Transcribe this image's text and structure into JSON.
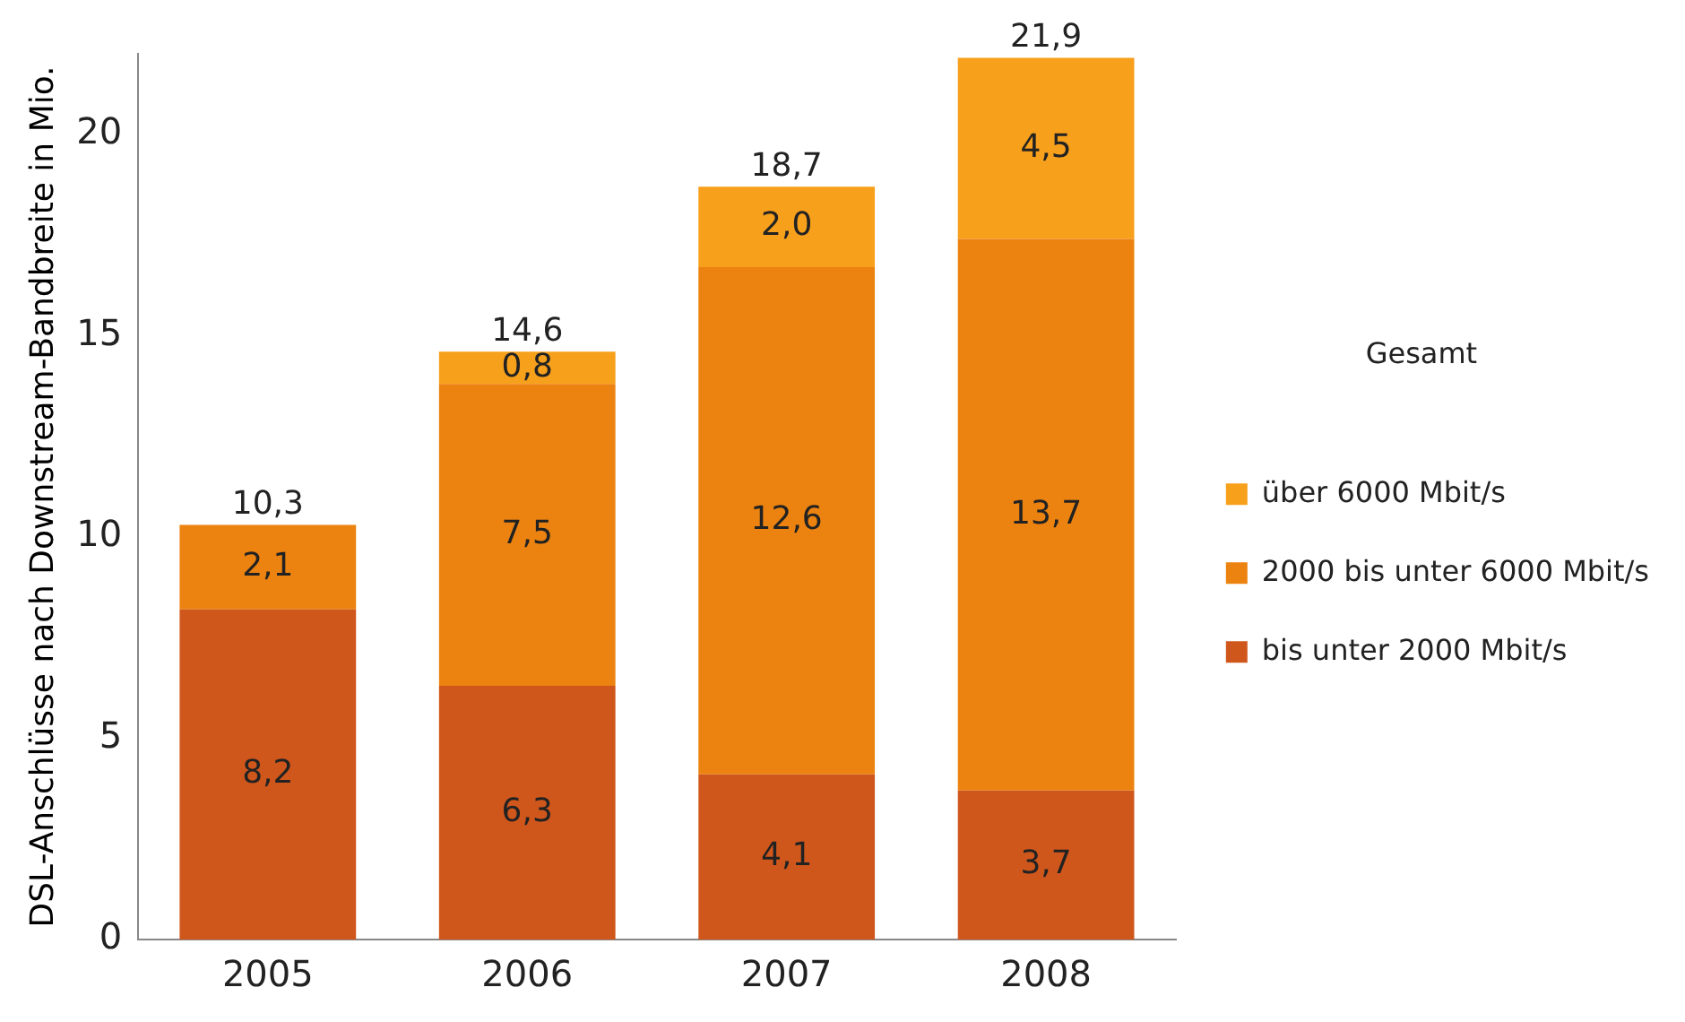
{
  "chart_data": {
    "type": "bar",
    "stacked": true,
    "ylabel": "DSL-Anschlüsse nach Downstream-Bandbreite in Mio.",
    "legend_title": "Gesamt",
    "categories": [
      "2005",
      "2006",
      "2007",
      "2008"
    ],
    "series": [
      {
        "name": "bis unter 2000 Mbit/s",
        "color": "#d0571c",
        "values": [
          8.2,
          6.3,
          4.1,
          3.7
        ],
        "value_labels": [
          "8,2",
          "6,3",
          "4,1",
          "3,7"
        ]
      },
      {
        "name": "2000 bis unter 6000 Mbit/s",
        "color": "#ec8310",
        "values": [
          2.1,
          7.5,
          12.6,
          13.7
        ],
        "value_labels": [
          "2,1",
          "7,5",
          "12,6",
          "13,7"
        ]
      },
      {
        "name": "über 6000 Mbit/s",
        "color": "#f7a01c",
        "values": [
          null,
          0.8,
          2.0,
          4.5
        ],
        "value_labels": [
          null,
          "0,8",
          "2,0",
          "4,5"
        ]
      }
    ],
    "ylim": [
      0,
      22
    ],
    "yticks": [
      0,
      5,
      10,
      15,
      20
    ],
    "grid": false,
    "legend": "right",
    "totals": [
      "10,3",
      "14,6",
      "18,7",
      "21,9"
    ]
  }
}
